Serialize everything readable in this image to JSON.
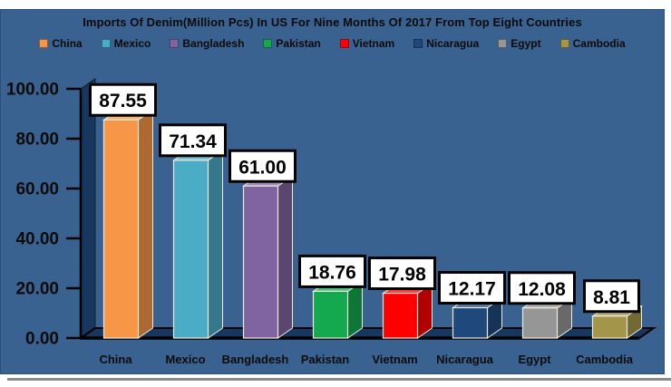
{
  "chart_data": {
    "type": "bar",
    "effect": "3d",
    "title": "Imports Of Denim(Million Pcs) In US For Nine Months Of 2017 From Top Eight Countries",
    "categories": [
      "China",
      "Mexico",
      "Bangladesh",
      "Pakistan",
      "Vietnam",
      "Nicaragua",
      "Egypt",
      "Cambodia"
    ],
    "values": [
      87.55,
      71.34,
      61.0,
      18.76,
      17.98,
      12.17,
      12.08,
      8.81
    ],
    "value_labels": [
      "87.55",
      "71.34",
      "61.00",
      "18.76",
      "17.98",
      "12.17",
      "12.08",
      "8.81"
    ],
    "series_colors": [
      "#F79646",
      "#4BACC6",
      "#8064A2",
      "#14A84F",
      "#FE0000",
      "#1F497D",
      "#969696",
      "#A3964A"
    ],
    "xlabel": "",
    "ylabel": "",
    "ylim": [
      0,
      100
    ],
    "ytick_step": 20,
    "ytick_labels": [
      "0.00",
      "20.00",
      "40.00",
      "60.00",
      "80.00",
      "100.00"
    ],
    "legend_position": "top",
    "grid": false
  },
  "colors": {
    "background": "#3A6290",
    "wall_floor": "#17375E",
    "axis": "#000000",
    "text": "#0B0B0B",
    "label_box_bg": "#FFFFFF",
    "label_box_border": "#000000",
    "face_outline": "#EFE9DC",
    "bottom_shadow": "#8A8A8A"
  }
}
